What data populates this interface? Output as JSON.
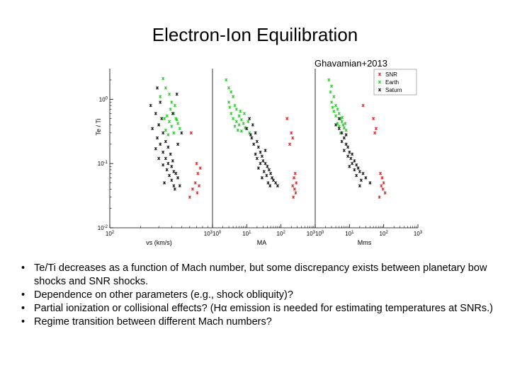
{
  "slide": {
    "title": "Electron-Ion Equilibration",
    "citation": "Ghavamian+2013",
    "bullet_glyph": "•",
    "bullets": [
      "Te/Ti decreases as a function of Mach number, but some discrepancy exists between planetary bow shocks and SNR shocks.",
      "Dependence on other parameters (e.g., shock obliquity)?",
      "Partial ionization or collisional effects? (Hα emission is needed for estimating temperatures at SNRs.)",
      "Regime transition between different Mach numbers?"
    ]
  },
  "chart_data": {
    "type": "scatter",
    "ylabel": "Te / Ti",
    "y_scale": "log",
    "ylim": [
      0.01,
      3
    ],
    "y_tick_labels": [
      "10^-2",
      "10^-1",
      "10^0"
    ],
    "legend": {
      "placement": "top-right",
      "entries": [
        "SNR",
        "Earth",
        "Saturn"
      ]
    },
    "colors": {
      "SNR": "#e02020",
      "Earth": "#22cc22",
      "Saturn": "#111111"
    },
    "panels": [
      {
        "xlabel": "vs (km/s)",
        "x_scale": "log",
        "xlim": [
          100,
          1000
        ],
        "x_tick_labels": [
          "10^2",
          "10^3"
        ],
        "series": [
          {
            "name": "Earth",
            "points": [
              [
                330,
                2.1
              ],
              [
                350,
                1.5
              ],
              [
                380,
                1.2
              ],
              [
                310,
                1.1
              ],
              [
                400,
                0.9
              ],
              [
                420,
                0.6
              ],
              [
                360,
                0.55
              ],
              [
                440,
                0.5
              ],
              [
                380,
                0.45
              ],
              [
                460,
                0.42
              ],
              [
                340,
                0.5
              ],
              [
                400,
                0.38
              ],
              [
                480,
                0.35
              ],
              [
                350,
                0.33
              ],
              [
                420,
                0.3
              ],
              [
                370,
                0.28
              ],
              [
                300,
                0.4
              ],
              [
                450,
                0.48
              ],
              [
                390,
                0.7
              ],
              [
                430,
                0.8
              ]
            ]
          },
          {
            "name": "Saturn",
            "points": [
              [
                290,
                1.5
              ],
              [
                310,
                0.9
              ],
              [
                280,
                0.6
              ],
              [
                320,
                0.5
              ],
              [
                300,
                0.4
              ],
              [
                260,
                0.35
              ],
              [
                330,
                0.3
              ],
              [
                290,
                0.25
              ],
              [
                350,
                0.22
              ],
              [
                310,
                0.2
              ],
              [
                370,
                0.18
              ],
              [
                280,
                0.17
              ],
              [
                330,
                0.15
              ],
              [
                390,
                0.14
              ],
              [
                350,
                0.12
              ],
              [
                300,
                0.12
              ],
              [
                410,
                0.11
              ],
              [
                370,
                0.1
              ],
              [
                330,
                0.095
              ],
              [
                400,
                0.09
              ],
              [
                360,
                0.08
              ],
              [
                420,
                0.075
              ],
              [
                440,
                0.07
              ],
              [
                380,
                0.065
              ],
              [
                460,
                0.06
              ],
              [
                400,
                0.055
              ],
              [
                340,
                0.05
              ],
              [
                480,
                0.045
              ],
              [
                420,
                0.045
              ],
              [
                430,
                0.04
              ],
              [
                250,
                0.8
              ],
              [
                450,
                1.2
              ],
              [
                410,
                0.6
              ],
              [
                460,
                0.2
              ],
              [
                500,
                0.3
              ]
            ]
          },
          {
            "name": "SNR",
            "points": [
              [
                620,
                0.3
              ],
              [
                700,
                0.1
              ],
              [
                760,
                0.085
              ],
              [
                720,
                0.07
              ],
              [
                680,
                0.05
              ],
              [
                740,
                0.045
              ],
              [
                640,
                0.04
              ],
              [
                710,
                0.035
              ],
              [
                600,
                0.03
              ]
            ]
          }
        ]
      },
      {
        "xlabel": "MA",
        "x_scale": "log",
        "xlim": [
          1,
          1000
        ],
        "x_tick_labels": [
          "10^0",
          "10^1",
          "10^2",
          "10^3"
        ],
        "series": [
          {
            "name": "Earth",
            "points": [
              [
                2.5,
                2.0
              ],
              [
                3.0,
                1.5
              ],
              [
                3.5,
                1.3
              ],
              [
                4.0,
                1.1
              ],
              [
                3.0,
                0.9
              ],
              [
                4.5,
                0.8
              ],
              [
                5.0,
                0.7
              ],
              [
                3.5,
                0.6
              ],
              [
                6.0,
                0.55
              ],
              [
                4.0,
                0.5
              ],
              [
                7.0,
                0.48
              ],
              [
                5.0,
                0.45
              ],
              [
                8.0,
                0.42
              ],
              [
                6.0,
                0.4
              ],
              [
                4.5,
                0.38
              ],
              [
                9.0,
                0.36
              ],
              [
                5.5,
                0.33
              ],
              [
                10.0,
                0.35
              ],
              [
                7.0,
                0.32
              ],
              [
                12.0,
                0.3
              ],
              [
                3.2,
                0.75
              ],
              [
                8.5,
                0.6
              ],
              [
                6.5,
                0.65
              ],
              [
                11.0,
                0.45
              ]
            ]
          },
          {
            "name": "Saturn",
            "points": [
              [
                12,
                0.5
              ],
              [
                15,
                0.4
              ],
              [
                18,
                0.3
              ],
              [
                14,
                0.25
              ],
              [
                20,
                0.22
              ],
              [
                16,
                0.2
              ],
              [
                22,
                0.18
              ],
              [
                25,
                0.15
              ],
              [
                18,
                0.14
              ],
              [
                28,
                0.13
              ],
              [
                20,
                0.12
              ],
              [
                30,
                0.11
              ],
              [
                25,
                0.1
              ],
              [
                35,
                0.1
              ],
              [
                40,
                0.09
              ],
              [
                22,
                0.085
              ],
              [
                45,
                0.08
              ],
              [
                32,
                0.075
              ],
              [
                50,
                0.07
              ],
              [
                38,
                0.065
              ],
              [
                55,
                0.06
              ],
              [
                28,
                0.06
              ],
              [
                60,
                0.055
              ],
              [
                42,
                0.05
              ],
              [
                70,
                0.05
              ],
              [
                48,
                0.045
              ],
              [
                80,
                0.045
              ],
              [
                10,
                0.35
              ],
              [
                13,
                0.28
              ],
              [
                35,
                0.16
              ]
            ]
          },
          {
            "name": "SNR",
            "points": [
              [
                150,
                0.5
              ],
              [
                200,
                0.3
              ],
              [
                220,
                0.25
              ],
              [
                180,
                0.2
              ],
              [
                260,
                0.07
              ],
              [
                240,
                0.06
              ],
              [
                280,
                0.05
              ],
              [
                220,
                0.045
              ],
              [
                250,
                0.04
              ],
              [
                270,
                0.035
              ],
              [
                230,
                0.03
              ]
            ]
          }
        ]
      },
      {
        "xlabel": "Mms",
        "x_scale": "log",
        "xlim": [
          1,
          1000
        ],
        "x_tick_labels": [
          "10^0",
          "10^1",
          "10^2",
          "10^3"
        ],
        "series": [
          {
            "name": "Earth",
            "points": [
              [
                2.5,
                2.0
              ],
              [
                3.0,
                1.6
              ],
              [
                2.8,
                1.3
              ],
              [
                3.5,
                1.1
              ],
              [
                3.0,
                0.9
              ],
              [
                4.0,
                0.8
              ],
              [
                4.5,
                0.7
              ],
              [
                3.5,
                0.65
              ],
              [
                5.0,
                0.6
              ],
              [
                4.0,
                0.55
              ],
              [
                5.5,
                0.5
              ],
              [
                6.0,
                0.45
              ],
              [
                4.5,
                0.42
              ],
              [
                6.5,
                0.4
              ],
              [
                5.0,
                0.38
              ],
              [
                7.0,
                0.36
              ],
              [
                8.0,
                0.33
              ],
              [
                5.5,
                0.3
              ],
              [
                3.2,
                0.75
              ],
              [
                6.2,
                0.52
              ],
              [
                7.5,
                0.42
              ]
            ]
          },
          {
            "name": "Saturn",
            "points": [
              [
                4,
                0.4
              ],
              [
                5,
                0.35
              ],
              [
                6,
                0.3
              ],
              [
                7,
                0.25
              ],
              [
                6,
                0.22
              ],
              [
                8,
                0.2
              ],
              [
                9,
                0.18
              ],
              [
                7,
                0.16
              ],
              [
                10,
                0.15
              ],
              [
                12,
                0.14
              ],
              [
                9,
                0.13
              ],
              [
                11,
                0.12
              ],
              [
                14,
                0.11
              ],
              [
                12,
                0.1
              ],
              [
                16,
                0.095
              ],
              [
                10,
                0.09
              ],
              [
                18,
                0.085
              ],
              [
                14,
                0.08
              ],
              [
                20,
                0.075
              ],
              [
                25,
                0.07
              ],
              [
                16,
                0.065
              ],
              [
                30,
                0.06
              ],
              [
                22,
                0.055
              ],
              [
                40,
                0.05
              ],
              [
                8,
                0.28
              ],
              [
                5,
                0.5
              ],
              [
                20,
                0.045
              ]
            ]
          },
          {
            "name": "SNR",
            "points": [
              [
                25,
                0.8
              ],
              [
                50,
                0.5
              ],
              [
                60,
                0.35
              ],
              [
                55,
                0.3
              ],
              [
                80,
                0.07
              ],
              [
                90,
                0.06
              ],
              [
                100,
                0.05
              ],
              [
                85,
                0.045
              ],
              [
                95,
                0.04
              ],
              [
                110,
                0.035
              ],
              [
                75,
                0.03
              ]
            ]
          }
        ]
      }
    ]
  }
}
